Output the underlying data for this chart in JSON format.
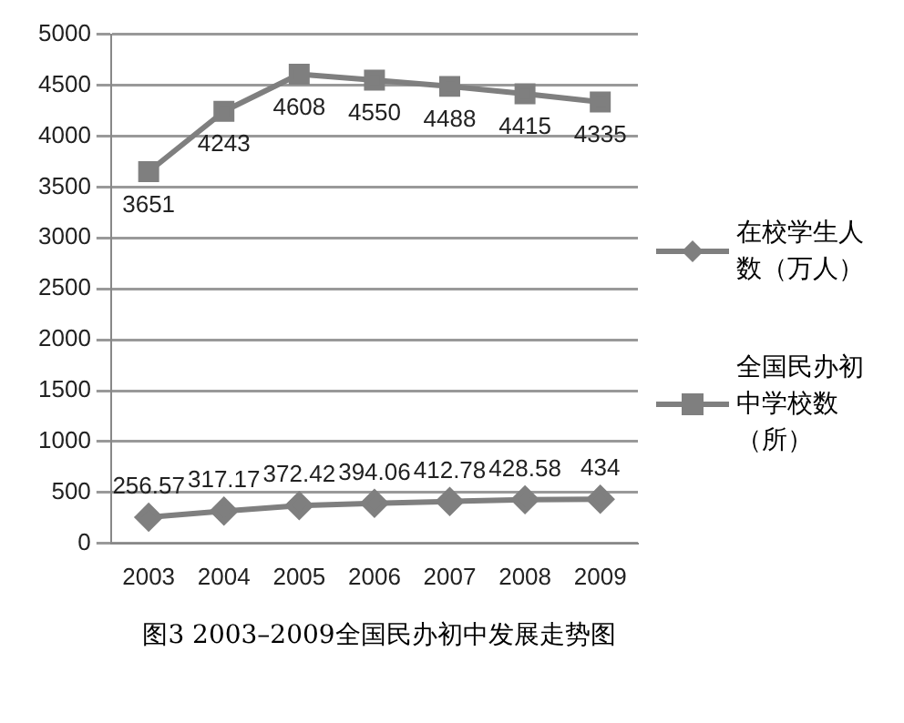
{
  "chart_data": {
    "type": "line",
    "title": "图3  2003–2009全国民办初中发展走势图",
    "categories": [
      "2003",
      "2004",
      "2005",
      "2006",
      "2007",
      "2008",
      "2009"
    ],
    "series": [
      {
        "name": "在校学生人数（万人）",
        "color": "#7f7f7f",
        "marker": "diamond",
        "values": [
          256.57,
          317.17,
          372.42,
          394.06,
          412.78,
          428.58,
          434
        ]
      },
      {
        "name": "全国民办初中学校数（所）",
        "color": "#7f7f7f",
        "marker": "square",
        "values": [
          3651,
          4243,
          4608,
          4550,
          4488,
          4415,
          4335
        ]
      }
    ],
    "ylim": [
      0,
      5000
    ],
    "yticks": [
      0,
      500,
      1000,
      1500,
      2000,
      2500,
      3000,
      3500,
      4000,
      4500,
      5000
    ],
    "grid": "y",
    "legend": "right",
    "data_labels": true
  }
}
